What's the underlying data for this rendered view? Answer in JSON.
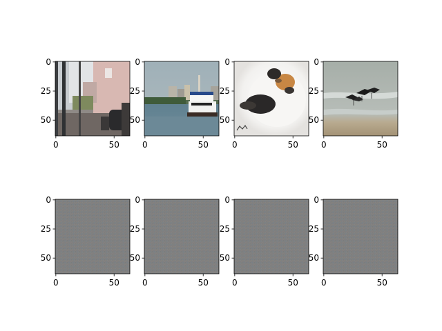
{
  "panels": [
    {
      "row": 0,
      "col": 0,
      "content": "room-with-window"
    },
    {
      "row": 0,
      "col": 1,
      "content": "boat-on-river"
    },
    {
      "row": 0,
      "col": 2,
      "content": "white-cat"
    },
    {
      "row": 0,
      "col": 3,
      "content": "birds-on-beach"
    },
    {
      "row": 1,
      "col": 0,
      "content": "gray-noise"
    },
    {
      "row": 1,
      "col": 1,
      "content": "gray-noise"
    },
    {
      "row": 1,
      "col": 2,
      "content": "gray-noise"
    },
    {
      "row": 1,
      "col": 3,
      "content": "gray-noise"
    }
  ],
  "axes": {
    "x_ticks": [
      {
        "value": 0,
        "label": "0"
      },
      {
        "value": 50,
        "label": "50"
      }
    ],
    "y_ticks": [
      {
        "value": 0,
        "label": "0"
      },
      {
        "value": 25,
        "label": "25"
      },
      {
        "value": 50,
        "label": "50"
      }
    ],
    "x_range": [
      -0.5,
      63.5
    ],
    "y_range": [
      -0.5,
      63.5
    ]
  },
  "colors": {
    "noise_base": "#808080",
    "frame": "#000000"
  }
}
